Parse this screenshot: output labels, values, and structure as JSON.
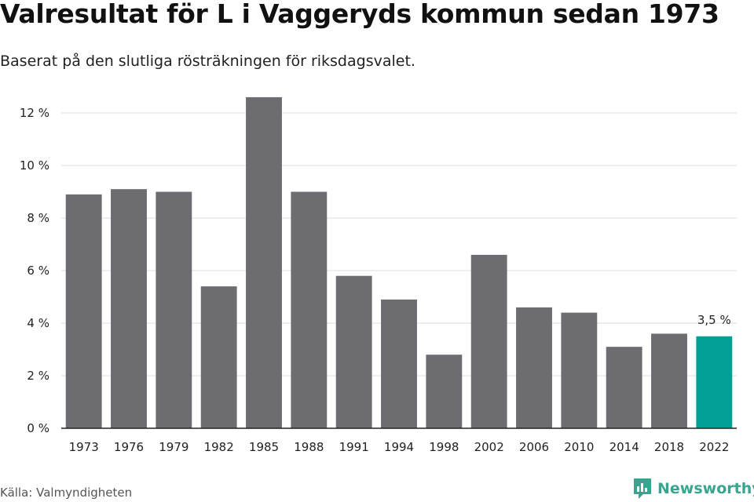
{
  "title": "Valresultat för L i Vaggeryds kommun sedan 1973",
  "subtitle": "Baserat på den slutliga rösträkningen för riksdagsvalet.",
  "source": "Källa: Valmyndigheten",
  "brand": {
    "name": "Newsworthy",
    "icon": "newsworthy-logo-icon",
    "color": "#3aa58f"
  },
  "colors": {
    "bar": "#6d6c71",
    "highlight": "#00a096",
    "grid": "#dddddd",
    "axis": "#222222"
  },
  "chart_data": {
    "type": "bar",
    "categories": [
      "1973",
      "1976",
      "1979",
      "1982",
      "1985",
      "1988",
      "1991",
      "1994",
      "1998",
      "2002",
      "2006",
      "2010",
      "2014",
      "2018",
      "2022"
    ],
    "values": [
      8.9,
      9.1,
      9.0,
      5.4,
      12.6,
      9.0,
      5.8,
      4.9,
      2.8,
      6.6,
      4.6,
      4.4,
      3.1,
      3.6,
      3.5
    ],
    "ylim": [
      0,
      12
    ],
    "yticks": [
      0,
      2,
      4,
      6,
      8,
      10,
      12
    ],
    "ytick_labels": [
      "0 %",
      "2 %",
      "4 %",
      "6 %",
      "8 %",
      "10 %",
      "12 %"
    ],
    "highlight_index": 14,
    "data_labels": [
      {
        "index": 14,
        "text": "3,5 %"
      }
    ],
    "grid": true,
    "legend": false
  }
}
